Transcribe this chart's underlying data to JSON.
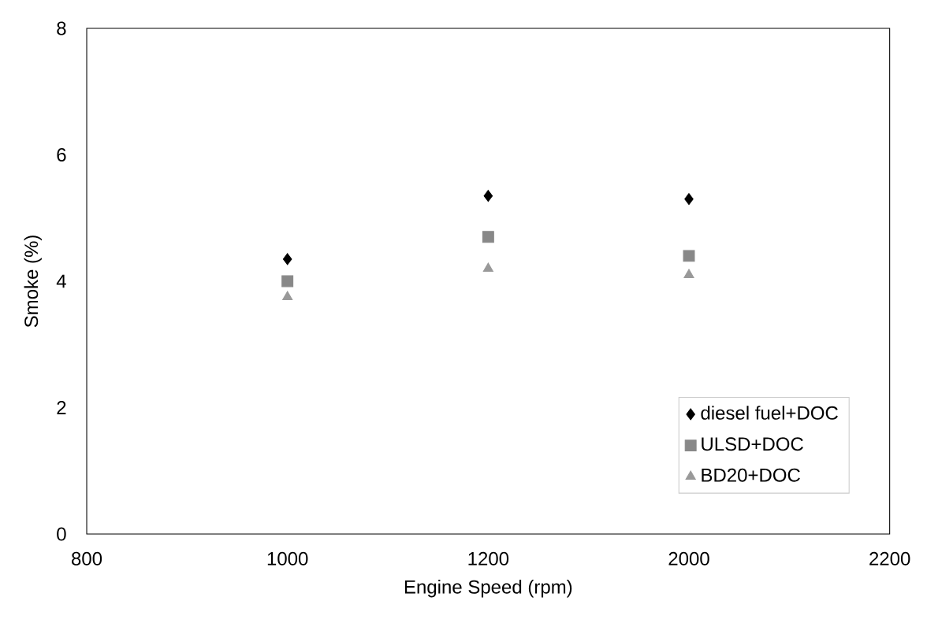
{
  "chart_data": {
    "type": "scatter",
    "xlabel": "Engine Speed (rpm)",
    "ylabel": "Smoke (%)",
    "categories": [
      "800",
      "1000",
      "1200",
      "2000",
      "2200"
    ],
    "series": [
      {
        "name": "diesel fuel+DOC",
        "color": "#000000",
        "marker": "diamond",
        "values": [
          null,
          4.35,
          5.35,
          5.3,
          null
        ]
      },
      {
        "name": "ULSD+DOC",
        "color": "#888888",
        "marker": "square",
        "values": [
          null,
          4.0,
          4.7,
          4.4,
          null
        ]
      },
      {
        "name": "BD20+DOC",
        "color": "#999999",
        "marker": "triangle",
        "values": [
          null,
          3.75,
          4.2,
          4.1,
          null
        ]
      }
    ],
    "ylim": [
      0,
      8
    ],
    "yticks": [
      0,
      2,
      4,
      6,
      8
    ],
    "legend": "bottom right"
  }
}
